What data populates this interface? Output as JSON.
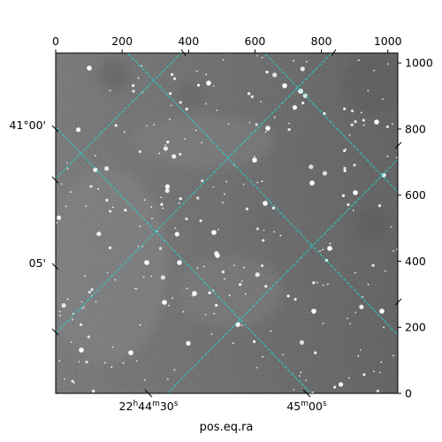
{
  "chart_data": {
    "type": "image",
    "xlabel": "pos.eq.ra",
    "ylabel": "",
    "xlim": [
      0,
      1030
    ],
    "ylim": [
      0,
      1030
    ],
    "pixel_axes": {
      "top_ticks": [
        0,
        200,
        400,
        600,
        800,
        1000
      ],
      "right_ticks": [
        0,
        200,
        400,
        600,
        800,
        1000
      ]
    },
    "world_axes": {
      "ra_ticks": [
        {
          "label": "22h44m30s"
        },
        {
          "label": "45m00s"
        }
      ],
      "dec_ticks": [
        {
          "label": "41°00'"
        },
        {
          "label": "05'"
        }
      ]
    },
    "grid": true,
    "grid_color": "#22d3d3",
    "colormap": "gray",
    "background_color": "#ffffff"
  }
}
